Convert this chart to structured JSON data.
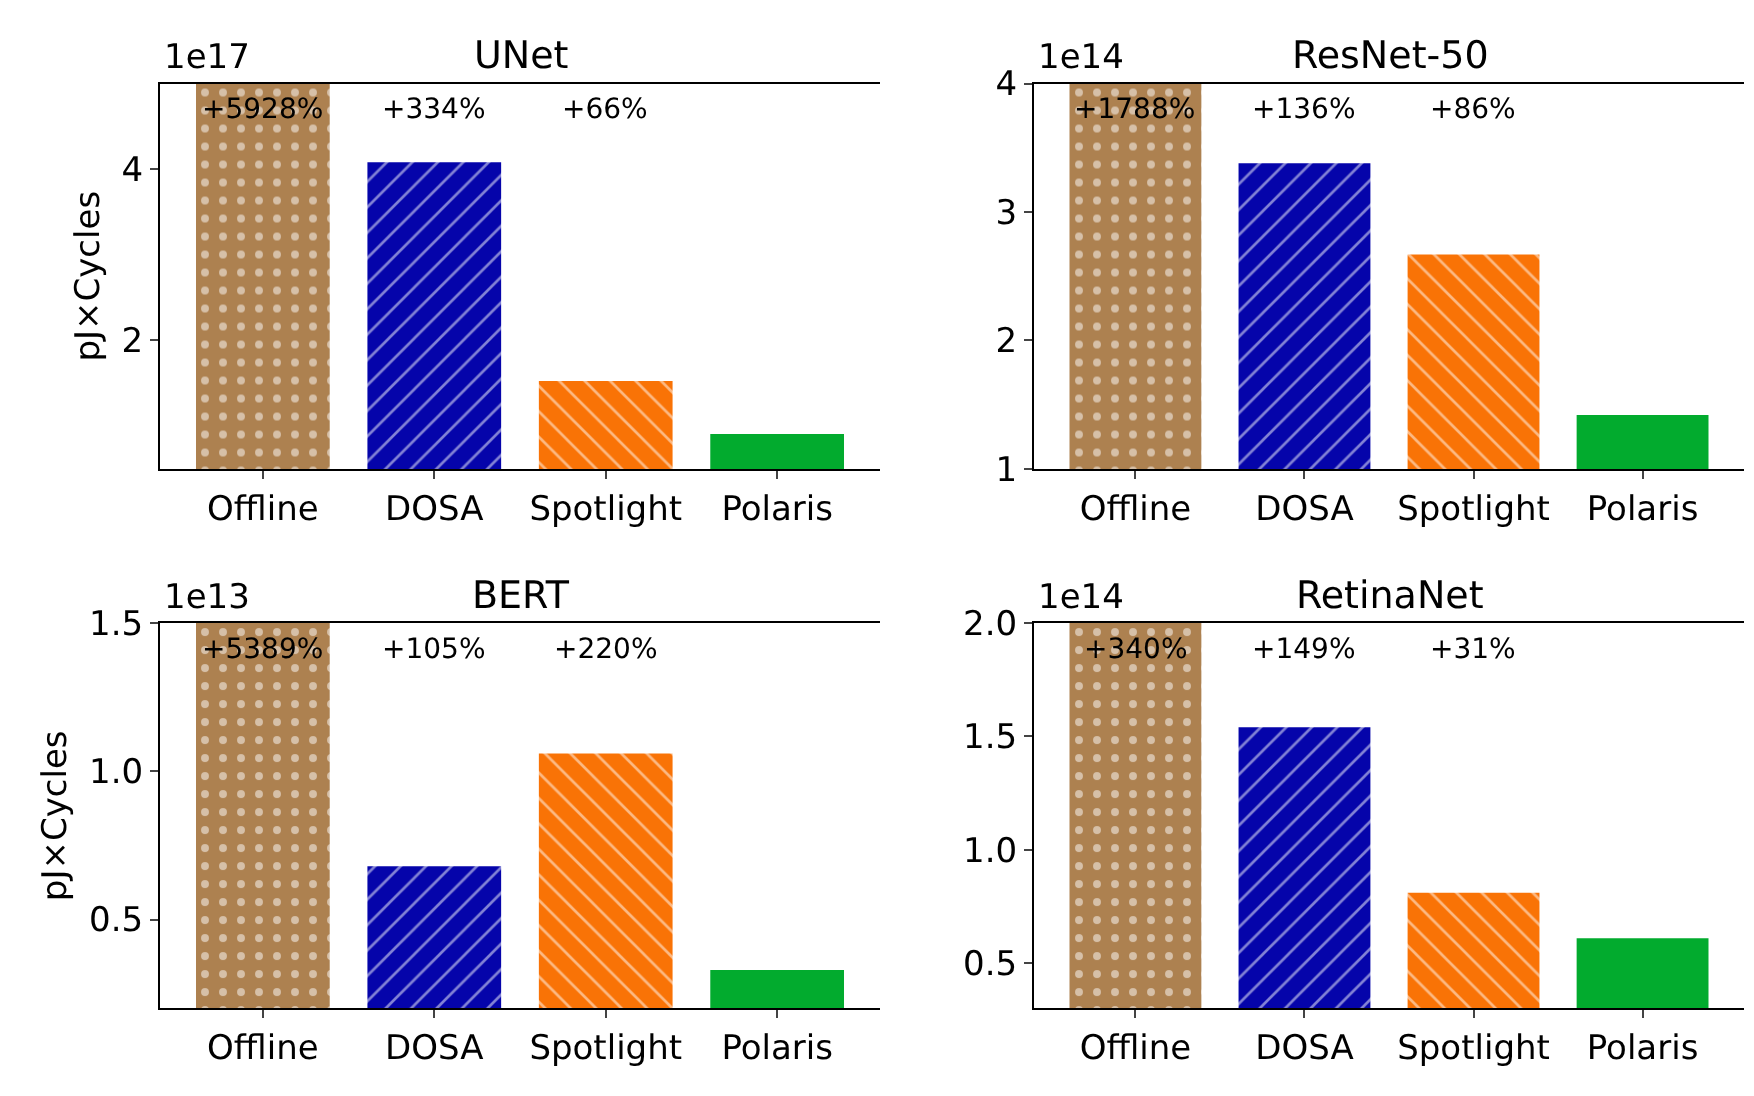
{
  "chart_data": [
    {
      "type": "bar",
      "title": "UNet",
      "ylabel": "pJ×Cycles",
      "categories": [
        "Offline",
        "DOSA",
        "Spotlight",
        "Polaris"
      ],
      "values": [
        5.0,
        4.08,
        1.52,
        0.9
      ],
      "colors": [
        "#ad8150",
        "#0504aa",
        "#f97306",
        "#02ab2e"
      ],
      "ylim": [
        0.49,
        5.0
      ],
      "yticks": [
        2,
        4
      ],
      "annotations": [
        "1e17",
        "+5928%",
        "+334%",
        "+66%"
      ]
    },
    {
      "type": "bar",
      "title": "ResNet-50",
      "categories": [
        "Offline",
        "DOSA",
        "Spotlight",
        "Polaris"
      ],
      "values": [
        4.0,
        3.38,
        2.67,
        1.42
      ],
      "colors": [
        "#ad8150",
        "#0504aa",
        "#f97306",
        "#02ab2e"
      ],
      "ylim": [
        1,
        4
      ],
      "yticks": [
        1,
        2,
        3,
        4
      ],
      "annotations": [
        "1e14",
        "+1788%",
        "+136%",
        "+86%"
      ]
    },
    {
      "type": "bar",
      "title": "BERT",
      "ylabel": "pJ×Cycles",
      "categories": [
        "Offline",
        "DOSA",
        "Spotlight",
        "Polaris"
      ],
      "values": [
        1.5,
        0.68,
        1.06,
        0.33
      ],
      "colors": [
        "#ad8150",
        "#0504aa",
        "#f97306",
        "#02ab2e"
      ],
      "ylim": [
        0.2,
        1.5
      ],
      "yticks": [
        {
          "value": 0.5,
          "label": "0.5"
        },
        {
          "value": 1.0,
          "label": "1.0"
        },
        {
          "value": 1.5,
          "label": "1.5"
        }
      ],
      "annotations": [
        "1e13",
        "+5389%",
        "+105%",
        "+220%"
      ]
    },
    {
      "type": "bar",
      "title": "RetinaNet",
      "categories": [
        "Offline",
        "DOSA",
        "Spotlight",
        "Polaris"
      ],
      "values": [
        2.0,
        1.54,
        0.81,
        0.61
      ],
      "colors": [
        "#ad8150",
        "#0504aa",
        "#f97306",
        "#02ab2e"
      ],
      "ylim": [
        0.3,
        2.0
      ],
      "yticks": [
        {
          "value": 0.5,
          "label": "0.5"
        },
        {
          "value": 1.0,
          "label": "1.0"
        },
        {
          "value": 1.5,
          "label": "1.5"
        },
        {
          "value": 2.0,
          "label": "2.0"
        }
      ],
      "annotations": [
        "1e14",
        "+340%",
        "+149%",
        "+31%"
      ]
    }
  ]
}
